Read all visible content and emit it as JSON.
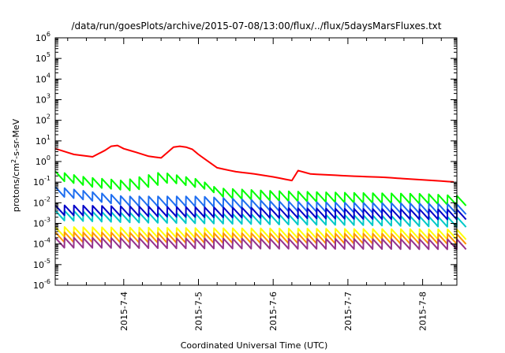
{
  "chart_data": {
    "type": "line",
    "title": "/data/run/goesPlots/archive/2015-07-08/13:00/flux/../flux/5daysMarsFluxes.txt",
    "xlabel": "Coordinated Universal Time (UTC)",
    "ylabel": {
      "prefix": "protons/cm",
      "sup": "2",
      "suffix": "-s-sr-MeV"
    },
    "yscale": "log",
    "ylim": [
      1e-06,
      1000000.0
    ],
    "y_ticks": [
      {
        "mant": "10",
        "exp": "-6",
        "v": 1e-06
      },
      {
        "mant": "10",
        "exp": "-5",
        "v": 1e-05
      },
      {
        "mant": "10",
        "exp": "-4",
        "v": 0.0001
      },
      {
        "mant": "10",
        "exp": "-3",
        "v": 0.001
      },
      {
        "mant": "10",
        "exp": "-2",
        "v": 0.01
      },
      {
        "mant": "10",
        "exp": "-1",
        "v": 0.1
      },
      {
        "mant": "10",
        "exp": "0",
        "v": 1
      },
      {
        "mant": "10",
        "exp": "1",
        "v": 10
      },
      {
        "mant": "10",
        "exp": "2",
        "v": 100
      },
      {
        "mant": "10",
        "exp": "3",
        "v": 1000
      },
      {
        "mant": "10",
        "exp": "4",
        "v": 10000
      },
      {
        "mant": "10",
        "exp": "5",
        "v": 100000
      },
      {
        "mant": "10",
        "exp": "6",
        "v": 1000000
      }
    ],
    "xlim": [
      "2015-07-03 02:00",
      "2015-07-08 11:00"
    ],
    "x_ticks": [
      "2015-7-4",
      "2015-7-5",
      "2015-7-6",
      "2015-7-7",
      "2015-7-8"
    ],
    "grid": false,
    "legend": "none",
    "series": [
      {
        "color": "#ff0000",
        "sawtooth": false,
        "x": [
          "2015-07-03 02:00",
          "2015-07-03 08:00",
          "2015-07-03 14:00",
          "2015-07-03 18:00",
          "2015-07-03 20:00",
          "2015-07-03 22:00",
          "2015-07-04 00:00",
          "2015-07-04 04:00",
          "2015-07-04 08:00",
          "2015-07-04 12:00",
          "2015-07-04 16:00",
          "2015-07-04 18:00",
          "2015-07-04 20:00",
          "2015-07-04 23:00",
          "2015-07-05 00:00",
          "2015-07-05 06:00",
          "2015-07-05 12:00",
          "2015-07-05 18:00",
          "2015-07-06 00:00",
          "2015-07-06 06:00",
          "2015-07-06 07:00",
          "2015-07-06 12:00",
          "2015-07-07 00:00",
          "2015-07-07 12:00",
          "2015-07-08 00:00",
          "2015-07-08 11:00"
        ],
        "y": [
          4.2,
          2.2,
          1.7,
          3.5,
          5.5,
          6.0,
          4.2,
          2.8,
          1.8,
          1.5,
          5.0,
          5.5,
          5.0,
          3.5,
          2.2,
          0.5,
          0.32,
          0.25,
          0.18,
          0.12,
          0.4,
          0.25,
          0.2,
          0.17,
          0.13,
          0.1
        ]
      },
      {
        "color": "#00ff00",
        "sawtooth": true,
        "x": [
          "2015-07-03 02:00",
          "2015-07-03 12:00",
          "2015-07-04 00:00",
          "2015-07-04 12:00",
          "2015-07-05 00:00",
          "2015-07-05 06:00",
          "2015-07-06 00:00",
          "2015-07-07 00:00",
          "2015-07-08 00:00",
          "2015-07-08 11:00"
        ],
        "y": [
          0.2,
          0.1,
          0.07,
          0.18,
          0.08,
          0.03,
          0.022,
          0.018,
          0.016,
          0.013
        ]
      },
      {
        "color": "#1e6ef0",
        "sawtooth": true,
        "x": [
          "2015-07-03 02:00",
          "2015-07-04 00:00",
          "2015-07-05 00:00",
          "2015-07-06 00:00",
          "2015-07-07 00:00",
          "2015-07-08 00:00",
          "2015-07-08 11:00"
        ],
        "y": [
          0.035,
          0.012,
          0.012,
          0.007,
          0.006,
          0.0055,
          0.005
        ]
      },
      {
        "color": "#00c8c8",
        "sawtooth": true,
        "x": [
          "2015-07-03 02:00",
          "2015-07-04 00:00",
          "2015-07-05 00:00",
          "2015-07-06 00:00",
          "2015-07-07 00:00",
          "2015-07-08 11:00"
        ],
        "y": [
          0.0025,
          0.002,
          0.0018,
          0.0016,
          0.0015,
          0.0012
        ]
      },
      {
        "color": "#0000c8",
        "sawtooth": true,
        "x": [
          "2015-07-03 02:00",
          "2015-07-04 00:00",
          "2015-07-05 00:00",
          "2015-07-06 00:00",
          "2015-07-07 00:00",
          "2015-07-08 11:00"
        ],
        "y": [
          0.0045,
          0.004,
          0.0036,
          0.0033,
          0.003,
          0.0028
        ]
      },
      {
        "color": "#ffff00",
        "sawtooth": true,
        "x": [
          "2015-07-03 02:00",
          "2015-07-05 00:00",
          "2015-07-08 11:00"
        ],
        "y": [
          0.0004,
          0.00035,
          0.0003
        ]
      },
      {
        "color": "#ff9600",
        "sawtooth": true,
        "x": [
          "2015-07-03 02:00",
          "2015-07-05 00:00",
          "2015-07-08 11:00"
        ],
        "y": [
          0.00022,
          0.0002,
          0.00018
        ]
      },
      {
        "color": "#96328c",
        "sawtooth": true,
        "x": [
          "2015-07-03 02:00",
          "2015-07-05 00:00",
          "2015-07-08 11:00"
        ],
        "y": [
          0.00012,
          0.00011,
          0.0001
        ]
      }
    ]
  }
}
